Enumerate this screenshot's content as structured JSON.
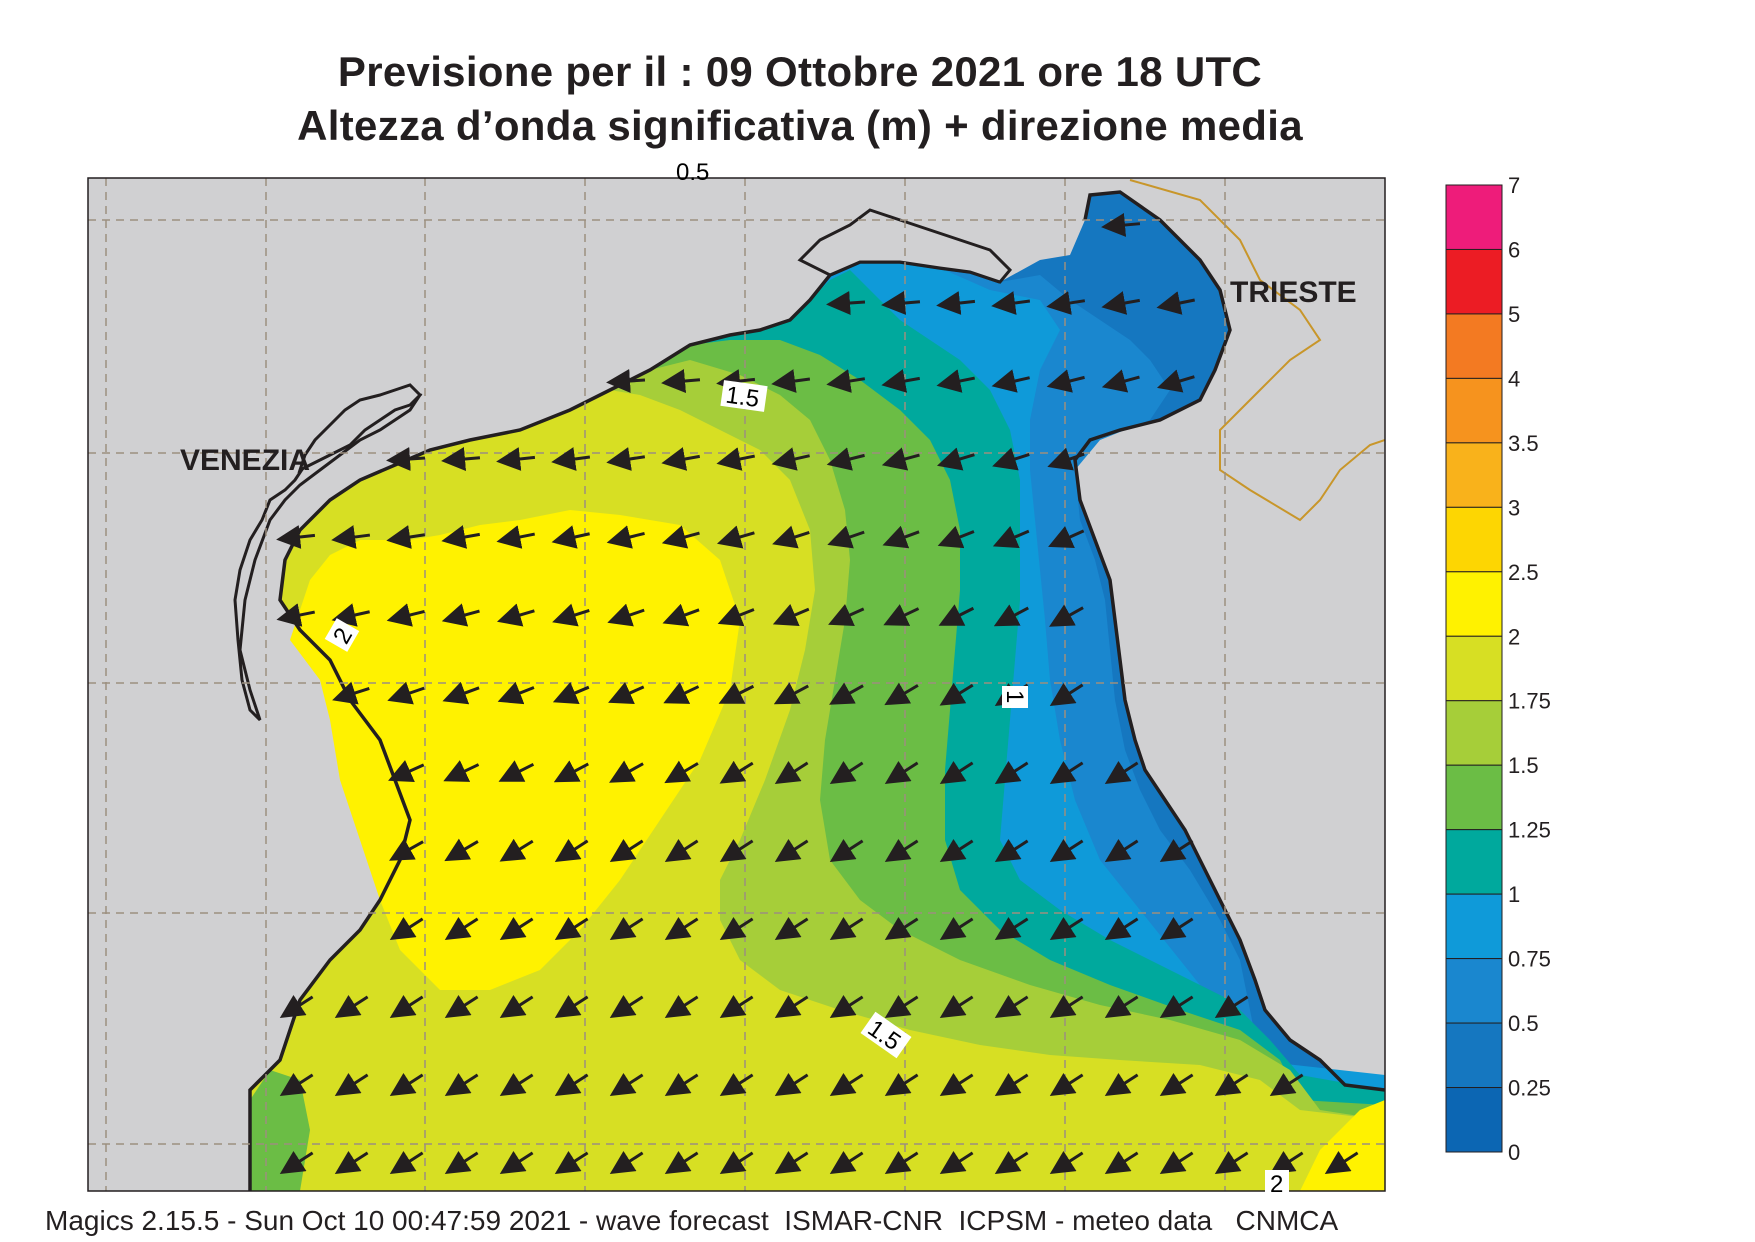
{
  "title": {
    "line1": "Previsione per il  :  09  Ottobre  2021   ore 18 UTC",
    "line2": "Altezza d’onda significativa (m) + direzione media"
  },
  "cities": [
    {
      "name": "VENEZIA"
    },
    {
      "name": "TRIESTE"
    }
  ],
  "contour_labels": [
    "1.5",
    "2",
    "1",
    "1.5",
    "2"
  ],
  "top_cut_label": "0.5",
  "colorbar": {
    "ticks": [
      "7",
      "6",
      "5",
      "4",
      "3.5",
      "3",
      "2.5",
      "2",
      "1.75",
      "1.5",
      "1.25",
      "1",
      "0.75",
      "0.5",
      "0.25",
      "0"
    ],
    "colors": [
      "#ee1c7a",
      "#ec1c24",
      "#f37a22",
      "#f6931e",
      "#f9b21b",
      "#fdd602",
      "#fff200",
      "#d7df23",
      "#a6ce39",
      "#6bbd45",
      "#00a99d",
      "#0f9ad9",
      "#1a87cf",
      "#1577c0",
      "#0c66b3"
    ]
  },
  "colors": {
    "land": "#d0d0d2",
    "coast": "#231f20",
    "border": "#c8962a",
    "arrow": "#231f20",
    "grid": "#9c8f7f"
  },
  "footer": "Magics 2.15.5 - Sun Oct 10 00:47:59 2021 - wave forecast  ISMAR-CNR  ICPSM - meteo data   CNMCA"
}
